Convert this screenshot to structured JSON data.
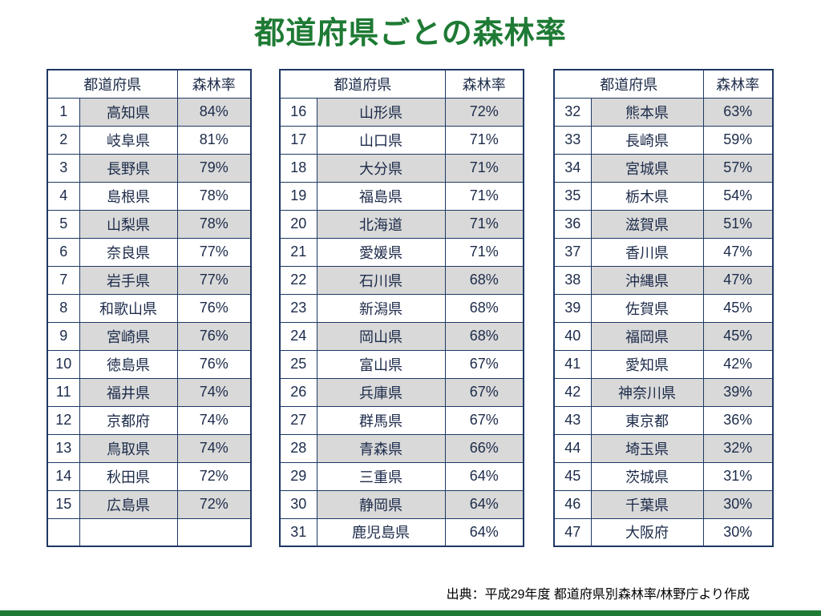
{
  "title": "都道府県ごとの森林率",
  "source": "出典：平成29年度 都道府県別森林率/林野庁より作成",
  "columns": {
    "prefecture": "都道府県",
    "rate": "森林率"
  },
  "colors": {
    "title_green": "#1e7a34",
    "table_border": "#1f3864",
    "row_shade": "#d9d9d9"
  },
  "tables": [
    {
      "rows": [
        {
          "rank": "1",
          "name": "高知県",
          "rate": "84%"
        },
        {
          "rank": "2",
          "name": "岐阜県",
          "rate": "81%"
        },
        {
          "rank": "3",
          "name": "長野県",
          "rate": "79%"
        },
        {
          "rank": "4",
          "name": "島根県",
          "rate": "78%"
        },
        {
          "rank": "5",
          "name": "山梨県",
          "rate": "78%"
        },
        {
          "rank": "6",
          "name": "奈良県",
          "rate": "77%"
        },
        {
          "rank": "7",
          "name": "岩手県",
          "rate": "77%"
        },
        {
          "rank": "8",
          "name": "和歌山県",
          "rate": "76%"
        },
        {
          "rank": "9",
          "name": "宮崎県",
          "rate": "76%"
        },
        {
          "rank": "10",
          "name": "徳島県",
          "rate": "76%"
        },
        {
          "rank": "11",
          "name": "福井県",
          "rate": "74%"
        },
        {
          "rank": "12",
          "name": "京都府",
          "rate": "74%"
        },
        {
          "rank": "13",
          "name": "鳥取県",
          "rate": "74%"
        },
        {
          "rank": "14",
          "name": "秋田県",
          "rate": "72%"
        },
        {
          "rank": "15",
          "name": "広島県",
          "rate": "72%"
        },
        {
          "rank": "",
          "name": "",
          "rate": ""
        }
      ]
    },
    {
      "rows": [
        {
          "rank": "16",
          "name": "山形県",
          "rate": "72%"
        },
        {
          "rank": "17",
          "name": "山口県",
          "rate": "71%"
        },
        {
          "rank": "18",
          "name": "大分県",
          "rate": "71%"
        },
        {
          "rank": "19",
          "name": "福島県",
          "rate": "71%"
        },
        {
          "rank": "20",
          "name": "北海道",
          "rate": "71%"
        },
        {
          "rank": "21",
          "name": "愛媛県",
          "rate": "71%"
        },
        {
          "rank": "22",
          "name": "石川県",
          "rate": "68%"
        },
        {
          "rank": "23",
          "name": "新潟県",
          "rate": "68%"
        },
        {
          "rank": "24",
          "name": "岡山県",
          "rate": "68%"
        },
        {
          "rank": "25",
          "name": "富山県",
          "rate": "67%"
        },
        {
          "rank": "26",
          "name": "兵庫県",
          "rate": "67%"
        },
        {
          "rank": "27",
          "name": "群馬県",
          "rate": "67%"
        },
        {
          "rank": "28",
          "name": "青森県",
          "rate": "66%"
        },
        {
          "rank": "29",
          "name": "三重県",
          "rate": "64%"
        },
        {
          "rank": "30",
          "name": "静岡県",
          "rate": "64%"
        },
        {
          "rank": "31",
          "name": "鹿児島県",
          "rate": "64%"
        }
      ]
    },
    {
      "rows": [
        {
          "rank": "32",
          "name": "熊本県",
          "rate": "63%"
        },
        {
          "rank": "33",
          "name": "長崎県",
          "rate": "59%"
        },
        {
          "rank": "34",
          "name": "宮城県",
          "rate": "57%"
        },
        {
          "rank": "35",
          "name": "栃木県",
          "rate": "54%"
        },
        {
          "rank": "36",
          "name": "滋賀県",
          "rate": "51%"
        },
        {
          "rank": "37",
          "name": "香川県",
          "rate": "47%"
        },
        {
          "rank": "38",
          "name": "沖縄県",
          "rate": "47%"
        },
        {
          "rank": "39",
          "name": "佐賀県",
          "rate": "45%"
        },
        {
          "rank": "40",
          "name": "福岡県",
          "rate": "45%"
        },
        {
          "rank": "41",
          "name": "愛知県",
          "rate": "42%"
        },
        {
          "rank": "42",
          "name": "神奈川県",
          "rate": "39%"
        },
        {
          "rank": "43",
          "name": "東京都",
          "rate": "36%"
        },
        {
          "rank": "44",
          "name": "埼玉県",
          "rate": "32%"
        },
        {
          "rank": "45",
          "name": "茨城県",
          "rate": "31%"
        },
        {
          "rank": "46",
          "name": "千葉県",
          "rate": "30%"
        },
        {
          "rank": "47",
          "name": "大阪府",
          "rate": "30%"
        }
      ]
    }
  ]
}
